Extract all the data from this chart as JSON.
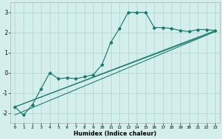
{
  "xlabel": "Humidex (Indice chaleur)",
  "bg_color": "#d4eeeb",
  "grid_color": "#b0d8d4",
  "line_color": "#1a7a6e",
  "xlim": [
    -0.5,
    23.5
  ],
  "ylim": [
    -2.5,
    3.5
  ],
  "yticks": [
    -2,
    -1,
    0,
    1,
    2,
    3
  ],
  "xticks": [
    0,
    1,
    2,
    3,
    4,
    5,
    6,
    7,
    8,
    9,
    10,
    11,
    12,
    13,
    14,
    15,
    16,
    17,
    18,
    19,
    20,
    21,
    22,
    23
  ],
  "series1_x": [
    0,
    1,
    2,
    3,
    4,
    5,
    6,
    7,
    8,
    9,
    10,
    11,
    12,
    13,
    14,
    15,
    16,
    17,
    18,
    19,
    20,
    21,
    22,
    23
  ],
  "series1_y": [
    -1.7,
    -2.1,
    -1.6,
    -0.8,
    0.0,
    -0.3,
    -0.25,
    -0.3,
    -0.2,
    -0.1,
    0.4,
    1.5,
    2.2,
    3.0,
    3.0,
    3.0,
    2.25,
    2.25,
    2.2,
    2.1,
    2.05,
    2.15,
    2.15,
    2.1
  ],
  "series2_x": [
    0,
    23
  ],
  "series2_y": [
    -1.7,
    2.1
  ],
  "series3_x": [
    0,
    23
  ],
  "series3_y": [
    -2.1,
    2.05
  ],
  "series4_x": [
    0,
    23
  ],
  "series4_y": [
    -1.7,
    2.05
  ]
}
